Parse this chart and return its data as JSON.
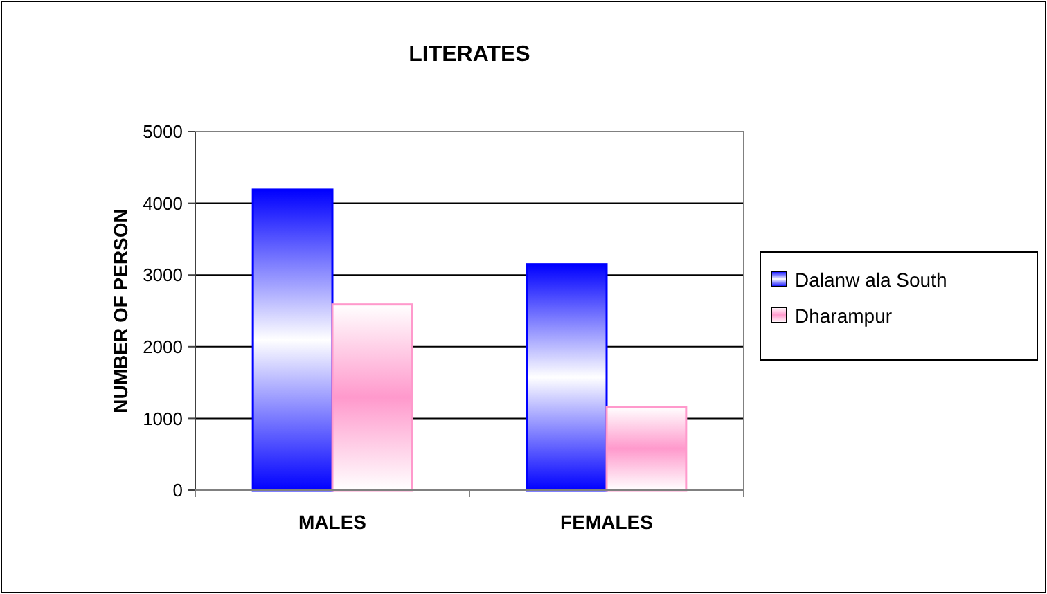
{
  "chart_data": {
    "type": "bar",
    "title": "LITERATES",
    "ylabel": "NUMBER OF PERSON",
    "categories": [
      "MALES",
      "FEMALES"
    ],
    "series": [
      {
        "name": "Dalanw ala South",
        "color": "#0000ff",
        "values": [
          4190,
          3150
        ]
      },
      {
        "name": "Dharampur",
        "color": "#ff99cc",
        "values": [
          2590,
          1160
        ]
      }
    ],
    "ylim": [
      0,
      5000
    ],
    "yticks": [
      0,
      1000,
      2000,
      3000,
      4000,
      5000
    ],
    "grid": "y",
    "legend": "right"
  }
}
